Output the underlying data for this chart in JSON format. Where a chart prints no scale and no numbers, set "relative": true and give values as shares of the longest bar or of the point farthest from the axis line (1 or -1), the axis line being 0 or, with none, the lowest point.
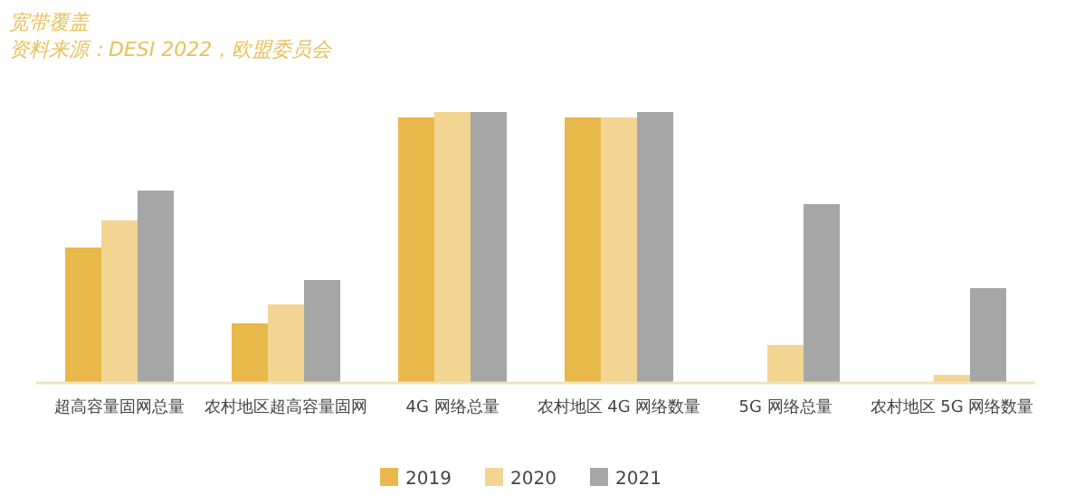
{
  "chart_data": {
    "type": "bar",
    "title": "宽带覆盖",
    "subtitle": "资料来源：DESI 2022，欧盟委员会",
    "relative": true,
    "legend": "bottom",
    "categories": [
      "超高容量固网总量",
      "农村地区超高容量固网",
      "4G 网络总量",
      "农村地区 4G 网络数量",
      "5G 网络总量",
      "农村地区 5G 网络数量"
    ],
    "series": [
      {
        "name": "2019",
        "color": "#e8b84a",
        "values": [
          0.5,
          0.22,
          0.98,
          0.98,
          0,
          0
        ]
      },
      {
        "name": "2020",
        "color": "#f2d592",
        "values": [
          0.6,
          0.29,
          1,
          0.98,
          0.14,
          0.03
        ]
      },
      {
        "name": "2021",
        "color": "#a6a6a6",
        "values": [
          0.71,
          0.38,
          1,
          1,
          0.66,
          0.35
        ]
      }
    ]
  }
}
